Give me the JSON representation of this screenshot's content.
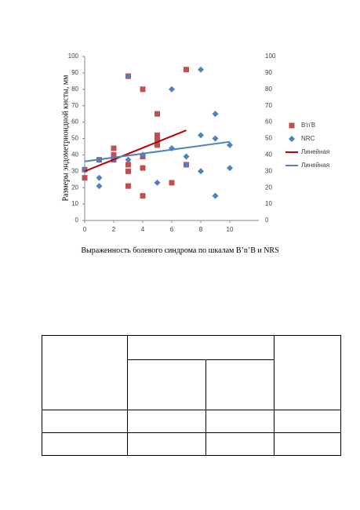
{
  "chart_data": {
    "type": "scatter",
    "y_label": "Размеры эндометриоидной кисты, мм",
    "caption": "Выраженность болевого синдрома по шкалам B’n’B и NRS",
    "xlim": [
      0,
      12
    ],
    "xticks": [
      0,
      2,
      4,
      6,
      8,
      10
    ],
    "ylim": [
      0,
      100
    ],
    "yticks": [
      0,
      10,
      20,
      30,
      40,
      50,
      60,
      70,
      80,
      90,
      100
    ],
    "y2lim": [
      0,
      100
    ],
    "y2ticks": [
      0,
      10,
      20,
      30,
      40,
      50,
      60,
      70,
      80,
      90,
      100
    ],
    "legend": "right",
    "series": [
      {
        "name": "B'n'B",
        "color": "#c0504d",
        "marker": "square",
        "x": [
          0,
          0,
          1,
          2,
          2,
          2,
          3,
          3,
          3,
          3,
          4,
          4,
          4,
          4,
          5,
          5,
          5,
          5,
          6,
          7,
          7
        ],
        "values": [
          31,
          26,
          37,
          44,
          40,
          37,
          88,
          34,
          30,
          21,
          80,
          39,
          32,
          15,
          65,
          52,
          49,
          46,
          23,
          92,
          34
        ]
      },
      {
        "name": "NRC",
        "color": "#4f81bd",
        "marker": "diamond",
        "x": [
          0,
          1,
          1,
          1,
          2,
          3,
          3,
          4,
          5,
          6,
          6,
          7,
          7,
          8,
          8,
          8,
          9,
          9,
          9,
          10,
          10
        ],
        "values": [
          31,
          37,
          26,
          21,
          37,
          88,
          37,
          40,
          23,
          80,
          44,
          39,
          34,
          92,
          52,
          30,
          65,
          50,
          15,
          46,
          32
        ]
      }
    ],
    "trendlines": [
      {
        "name": "Линейная",
        "color": "#c00000",
        "x": [
          0,
          7
        ],
        "values": [
          30,
          55
        ]
      },
      {
        "name": "Линейная",
        "color": "#4f81bd",
        "x": [
          0,
          10
        ],
        "values": [
          36,
          48
        ]
      }
    ]
  }
}
